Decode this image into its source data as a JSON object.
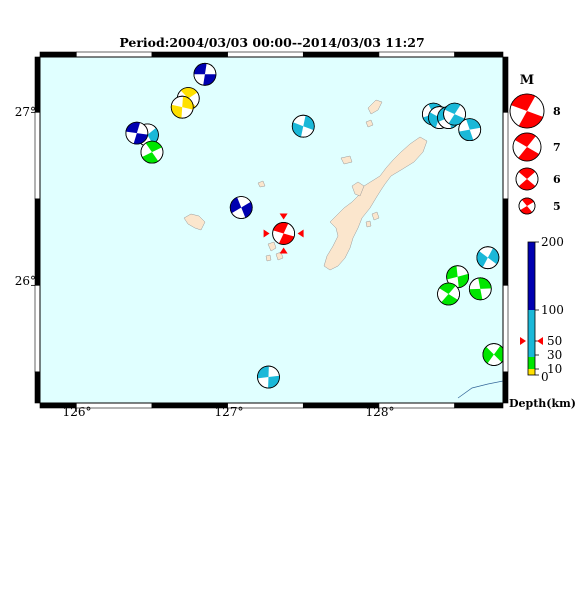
{
  "title": "Period:2004/03/03 00:00--2014/03/03 11:27",
  "axes": {
    "lon_ticks": [
      "126°",
      "127°",
      "128°"
    ],
    "lat_ticks": [
      "27°",
      "26°"
    ]
  },
  "legend": {
    "magnitude": {
      "title": "M",
      "labels": [
        "8",
        "7",
        "6",
        "5"
      ]
    },
    "depth": {
      "title": "Depth(km)",
      "labels": [
        "200",
        "100",
        "50",
        "30",
        "10",
        "0"
      ]
    }
  },
  "colors": {
    "ocean": "#e0ffff",
    "land": "#fbe6cd",
    "depth_0_10": "#ffe000",
    "depth_10_30": "#00e600",
    "depth_30_100": "#1ab8d8",
    "depth_100_200": "#0000b0",
    "highlight": "#ff0000"
  },
  "events": [
    {
      "lon": 126.85,
      "lat": 27.22,
      "depth_class": "deep"
    },
    {
      "lon": 126.74,
      "lat": 27.08,
      "depth_class": "shallow"
    },
    {
      "lon": 126.7,
      "lat": 27.03,
      "depth_class": "shallow"
    },
    {
      "lon": 126.47,
      "lat": 26.87,
      "depth_class": "mid"
    },
    {
      "lon": 126.4,
      "lat": 26.88,
      "depth_class": "deep"
    },
    {
      "lon": 126.5,
      "lat": 26.77,
      "depth_class": "green"
    },
    {
      "lon": 127.5,
      "lat": 26.92,
      "depth_class": "mid"
    },
    {
      "lon": 127.09,
      "lat": 26.45,
      "depth_class": "deep"
    },
    {
      "lon": 127.37,
      "lat": 26.3,
      "depth_class": "highlight"
    },
    {
      "lon": 128.36,
      "lat": 26.99,
      "depth_class": "mid"
    },
    {
      "lon": 128.4,
      "lat": 26.97,
      "depth_class": "mid"
    },
    {
      "lon": 128.46,
      "lat": 26.97,
      "depth_class": "mid"
    },
    {
      "lon": 128.5,
      "lat": 26.99,
      "depth_class": "mid"
    },
    {
      "lon": 128.6,
      "lat": 26.9,
      "depth_class": "mid"
    },
    {
      "lon": 128.72,
      "lat": 26.16,
      "depth_class": "mid"
    },
    {
      "lon": 128.52,
      "lat": 26.05,
      "depth_class": "green"
    },
    {
      "lon": 128.46,
      "lat": 25.95,
      "depth_class": "green"
    },
    {
      "lon": 128.67,
      "lat": 25.98,
      "depth_class": "green"
    },
    {
      "lon": 128.76,
      "lat": 25.6,
      "depth_class": "green"
    },
    {
      "lon": 127.27,
      "lat": 25.47,
      "depth_class": "mid"
    }
  ]
}
